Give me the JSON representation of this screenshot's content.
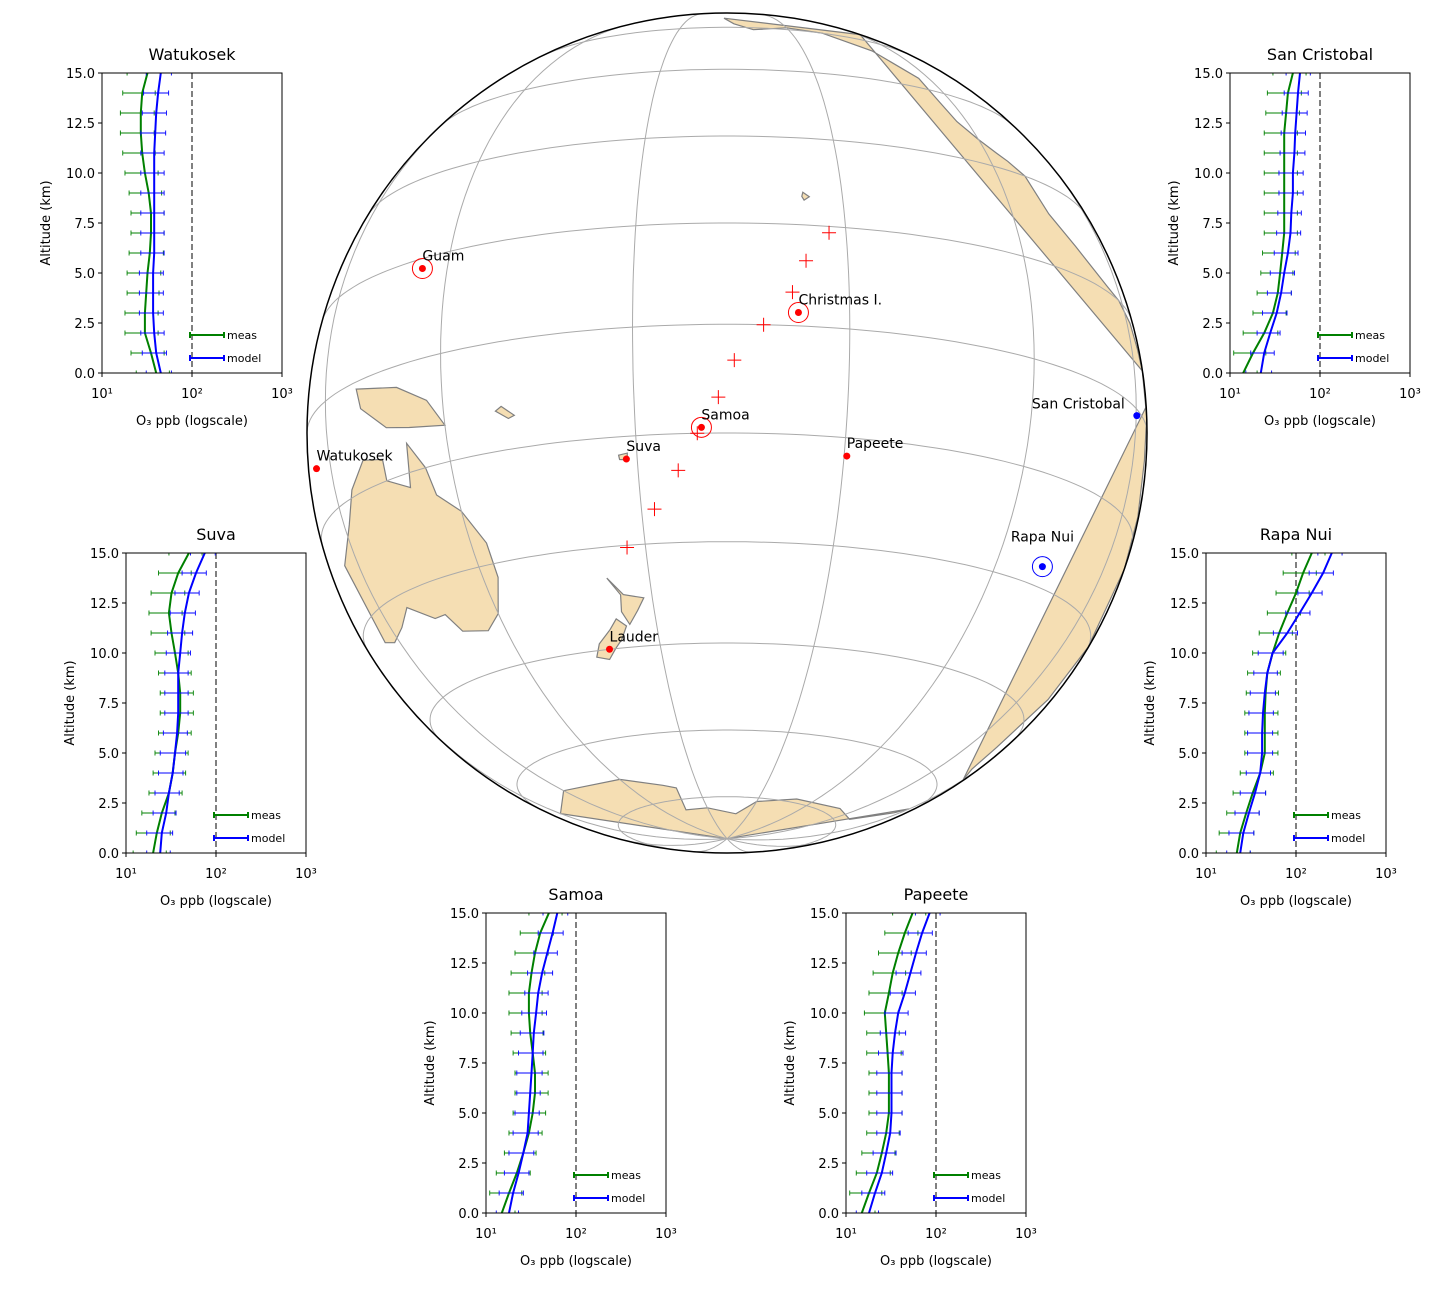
{
  "chart_data": [
    {
      "type": "map",
      "stations": [
        {
          "name": "Guam",
          "lon": 144.8,
          "lat": 13.4,
          "color": "#ff0000",
          "circled": true
        },
        {
          "name": "Christmas I.",
          "lon": -157.2,
          "lat": 1.9,
          "color": "#ff0000",
          "circled": true
        },
        {
          "name": "Samoa",
          "lon": -170.6,
          "lat": -14.2,
          "color": "#ff0000",
          "circled": true
        },
        {
          "name": "Suva",
          "lon": 178.4,
          "lat": -18.1,
          "color": "#ff0000",
          "circled": false
        },
        {
          "name": "Papeete",
          "lon": -149.6,
          "lat": -17.5,
          "color": "#ff0000",
          "circled": false
        },
        {
          "name": "Watukosek",
          "lon": 112.6,
          "lat": -7.6,
          "color": "#ff0000",
          "circled": false
        },
        {
          "name": "San Cristobal",
          "lon": -89.6,
          "lat": -0.9,
          "color": "#0000ff",
          "circled": false
        },
        {
          "name": "Rapa Nui",
          "lon": -109.4,
          "lat": -27.2,
          "color": "#0000ff",
          "circled": true
        },
        {
          "name": "Lauder",
          "lon": 169.7,
          "lat": -45.0,
          "color": "#ff0000",
          "circled": false
        }
      ],
      "points": [
        {
          "lon": 177,
          "lat": -30.3
        },
        {
          "lon": -178,
          "lat": -25.2
        },
        {
          "lon": -174.1,
          "lat": -20
        },
        {
          "lon": -171.2,
          "lat": -15
        },
        {
          "lon": -168.2,
          "lat": -10.1
        },
        {
          "lon": -166,
          "lat": -5
        },
        {
          "lon": -162,
          "lat": 0
        },
        {
          "lon": -158,
          "lat": 4.8
        },
        {
          "lon": -156,
          "lat": 9.5
        },
        {
          "lon": -152.5,
          "lat": 14
        }
      ],
      "points_color": "#ff0000"
    },
    {
      "type": "line",
      "title": "Watukosek",
      "xlabel": "O₃ ppb (logscale)",
      "ylabel": "Altitude (km)",
      "xscale": "log",
      "xlim": [
        10,
        1000
      ],
      "xticks": [
        {
          "value": 10,
          "label": "10¹"
        },
        {
          "value": 100,
          "label": "10²"
        },
        {
          "value": 1000,
          "label": "10³"
        }
      ],
      "ylim": [
        0,
        15
      ],
      "yticks": [
        {
          "value": 0,
          "label": "0.0"
        },
        2.5,
        {
          "value": 5,
          "label": "5.0"
        },
        7.5,
        {
          "value": 10,
          "label": "10.0"
        },
        12.5,
        {
          "value": 15,
          "label": "15.0"
        }
      ],
      "reference_x": 100,
      "legend": "lower right",
      "y": [
        0,
        1,
        2,
        3,
        4,
        5,
        6,
        7,
        8,
        9,
        10,
        11,
        12,
        13,
        14,
        15
      ],
      "series": [
        {
          "name": "meas",
          "color": "#008000",
          "values": [
            40,
            35,
            30,
            30,
            31,
            32,
            34,
            35,
            35,
            33,
            30,
            28,
            27,
            27,
            28,
            32
          ],
          "errors": [
            16,
            14,
            12,
            12,
            12,
            13,
            14,
            14,
            14,
            13,
            12,
            11,
            11,
            11,
            11,
            13
          ]
        },
        {
          "name": "model",
          "color": "#0000ff",
          "values": [
            45,
            40,
            38,
            37,
            37,
            37,
            38,
            38,
            38,
            38,
            38,
            38,
            39,
            40,
            42,
            45
          ],
          "errors": [
            14,
            12,
            11,
            11,
            11,
            11,
            11,
            11,
            11,
            11,
            11,
            11,
            12,
            12,
            13,
            14
          ]
        }
      ]
    },
    {
      "type": "line",
      "title": "San Cristobal",
      "xlabel": "O₃ ppb (logscale)",
      "ylabel": "Altitude (km)",
      "xscale": "log",
      "xlim": [
        10,
        1000
      ],
      "xticks": [
        {
          "value": 10,
          "label": "10¹"
        },
        {
          "value": 100,
          "label": "10²"
        },
        {
          "value": 1000,
          "label": "10³"
        }
      ],
      "ylim": [
        0,
        15
      ],
      "yticks": [
        {
          "value": 0,
          "label": "0.0"
        },
        2.5,
        {
          "value": 5,
          "label": "5.0"
        },
        7.5,
        {
          "value": 10,
          "label": "10.0"
        },
        12.5,
        {
          "value": 15,
          "label": "15.0"
        }
      ],
      "reference_x": 100,
      "legend": "lower right",
      "y": [
        0,
        1,
        2,
        3,
        4,
        5,
        6,
        7,
        8,
        9,
        10,
        11,
        12,
        13,
        14,
        15
      ],
      "series": [
        {
          "name": "meas",
          "color": "#008000",
          "values": [
            14,
            18,
            24,
            30,
            34,
            36,
            38,
            40,
            40,
            40,
            40,
            40,
            40,
            42,
            44,
            50
          ],
          "errors": [
            6,
            7,
            10,
            12,
            14,
            14,
            15,
            16,
            16,
            16,
            16,
            16,
            16,
            17,
            18,
            20
          ]
        },
        {
          "name": "model",
          "color": "#0000ff",
          "values": [
            22,
            24,
            28,
            33,
            37,
            40,
            44,
            47,
            48,
            50,
            50,
            52,
            53,
            55,
            57,
            60
          ],
          "errors": [
            7,
            7,
            8,
            10,
            11,
            12,
            13,
            14,
            14,
            15,
            15,
            16,
            16,
            17,
            17,
            18
          ]
        }
      ]
    },
    {
      "type": "line",
      "title": "Suva",
      "xlabel": "O₃ ppb (logscale)",
      "ylabel": "Altitude (km)",
      "xscale": "log",
      "xlim": [
        10,
        1000
      ],
      "xticks": [
        {
          "value": 10,
          "label": "10¹"
        },
        {
          "value": 100,
          "label": "10²"
        },
        {
          "value": 1000,
          "label": "10³"
        }
      ],
      "ylim": [
        0,
        15
      ],
      "yticks": [
        {
          "value": 0,
          "label": "0.0"
        },
        2.5,
        {
          "value": 5,
          "label": "5.0"
        },
        7.5,
        {
          "value": 10,
          "label": "10.0"
        },
        12.5,
        {
          "value": 15,
          "label": "15.0"
        }
      ],
      "reference_x": 100,
      "legend": "lower right",
      "y": [
        0,
        1,
        2,
        3,
        4,
        5,
        6,
        7,
        8,
        9,
        10,
        11,
        12,
        13,
        14,
        15
      ],
      "series": [
        {
          "name": "meas",
          "color": "#008000",
          "values": [
            20,
            22,
            25,
            30,
            33,
            35,
            38,
            40,
            40,
            38,
            35,
            32,
            30,
            32,
            38,
            50
          ],
          "errors": [
            8,
            9,
            10,
            12,
            13,
            14,
            15,
            16,
            16,
            15,
            14,
            13,
            12,
            13,
            15,
            20
          ]
        },
        {
          "name": "model",
          "color": "#0000ff",
          "values": [
            24,
            25,
            28,
            30,
            33,
            35,
            37,
            38,
            38,
            38,
            40,
            42,
            45,
            50,
            60,
            75
          ],
          "errors": [
            7,
            8,
            8,
            9,
            10,
            11,
            11,
            11,
            11,
            11,
            12,
            13,
            14,
            15,
            18,
            23
          ]
        }
      ]
    },
    {
      "type": "line",
      "title": "Rapa Nui",
      "xlabel": "O₃ ppb (logscale)",
      "ylabel": "Altitude (km)",
      "xscale": "log",
      "xlim": [
        10,
        1000
      ],
      "xticks": [
        {
          "value": 10,
          "label": "10¹"
        },
        {
          "value": 100,
          "label": "10²"
        },
        {
          "value": 1000,
          "label": "10³"
        }
      ],
      "ylim": [
        0,
        15
      ],
      "yticks": [
        {
          "value": 0,
          "label": "0.0"
        },
        2.5,
        {
          "value": 5,
          "label": "5.0"
        },
        7.5,
        {
          "value": 10,
          "label": "10.0"
        },
        12.5,
        {
          "value": 15,
          "label": "15.0"
        }
      ],
      "reference_x": 100,
      "legend": "lower right",
      "y": [
        0,
        1,
        2,
        3,
        4,
        5,
        6,
        7,
        8,
        9,
        10,
        11,
        12,
        13,
        14,
        15
      ],
      "series": [
        {
          "name": "meas",
          "color": "#008000",
          "values": [
            22,
            24,
            28,
            33,
            40,
            45,
            45,
            45,
            46,
            48,
            55,
            65,
            80,
            100,
            120,
            150
          ],
          "errors": [
            9,
            10,
            11,
            13,
            16,
            18,
            18,
            18,
            18,
            19,
            22,
            26,
            32,
            40,
            48,
            60
          ]
        },
        {
          "name": "model",
          "color": "#0000ff",
          "values": [
            24,
            26,
            30,
            35,
            40,
            42,
            42,
            43,
            45,
            48,
            55,
            80,
            110,
            150,
            200,
            250
          ],
          "errors": [
            7,
            8,
            9,
            11,
            12,
            13,
            13,
            13,
            14,
            14,
            17,
            24,
            33,
            45,
            60,
            75
          ]
        }
      ]
    },
    {
      "type": "line",
      "title": "Samoa",
      "xlabel": "O₃ ppb (logscale)",
      "ylabel": "Altitude (km)",
      "xscale": "log",
      "xlim": [
        10,
        1000
      ],
      "xticks": [
        {
          "value": 10,
          "label": "10¹"
        },
        {
          "value": 100,
          "label": "10²"
        },
        {
          "value": 1000,
          "label": "10³"
        }
      ],
      "ylim": [
        0,
        15
      ],
      "yticks": [
        {
          "value": 0,
          "label": "0.0"
        },
        2.5,
        {
          "value": 5,
          "label": "5.0"
        },
        7.5,
        {
          "value": 10,
          "label": "10.0"
        },
        12.5,
        {
          "value": 15,
          "label": "15.0"
        }
      ],
      "reference_x": 100,
      "legend": "lower right",
      "y": [
        0,
        1,
        2,
        3,
        4,
        5,
        6,
        7,
        8,
        9,
        10,
        11,
        12,
        13,
        14,
        15
      ],
      "series": [
        {
          "name": "meas",
          "color": "#008000",
          "values": [
            15,
            18,
            22,
            26,
            30,
            33,
            35,
            35,
            33,
            31,
            30,
            30,
            32,
            35,
            40,
            50
          ],
          "errors": [
            6,
            7,
            9,
            10,
            12,
            13,
            14,
            14,
            13,
            12,
            12,
            12,
            13,
            14,
            16,
            20
          ]
        },
        {
          "name": "model",
          "color": "#0000ff",
          "values": [
            18,
            20,
            23,
            26,
            29,
            30,
            31,
            32,
            33,
            34,
            36,
            38,
            42,
            48,
            55,
            62
          ],
          "errors": [
            5,
            6,
            7,
            8,
            9,
            9,
            9,
            10,
            10,
            10,
            11,
            11,
            13,
            14,
            17,
            19
          ]
        }
      ]
    },
    {
      "type": "line",
      "title": "Papeete",
      "xlabel": "O₃ ppb (logscale)",
      "ylabel": "Altitude (km)",
      "xscale": "log",
      "xlim": [
        10,
        1000
      ],
      "xticks": [
        {
          "value": 10,
          "label": "10¹"
        },
        {
          "value": 100,
          "label": "10²"
        },
        {
          "value": 1000,
          "label": "10³"
        }
      ],
      "ylim": [
        0,
        15
      ],
      "yticks": [
        {
          "value": 0,
          "label": "0.0"
        },
        2.5,
        {
          "value": 5,
          "label": "5.0"
        },
        7.5,
        {
          "value": 10,
          "label": "10.0"
        },
        12.5,
        {
          "value": 15,
          "label": "15.0"
        }
      ],
      "reference_x": 100,
      "legend": "lower right",
      "y": [
        0,
        1,
        2,
        3,
        4,
        5,
        6,
        7,
        8,
        9,
        10,
        11,
        12,
        13,
        14,
        15
      ],
      "series": [
        {
          "name": "meas",
          "color": "#008000",
          "values": [
            15,
            18,
            22,
            25,
            28,
            30,
            30,
            30,
            29,
            28,
            27,
            30,
            33,
            38,
            45,
            55
          ],
          "errors": [
            6,
            7,
            9,
            10,
            11,
            12,
            12,
            12,
            12,
            11,
            11,
            12,
            13,
            15,
            18,
            22
          ]
        },
        {
          "name": "model",
          "color": "#0000ff",
          "values": [
            18,
            21,
            25,
            28,
            31,
            32,
            32,
            32,
            33,
            35,
            38,
            45,
            52,
            60,
            70,
            85
          ],
          "errors": [
            5,
            6,
            8,
            8,
            9,
            10,
            10,
            10,
            10,
            11,
            11,
            14,
            16,
            18,
            21,
            26
          ]
        }
      ]
    }
  ]
}
